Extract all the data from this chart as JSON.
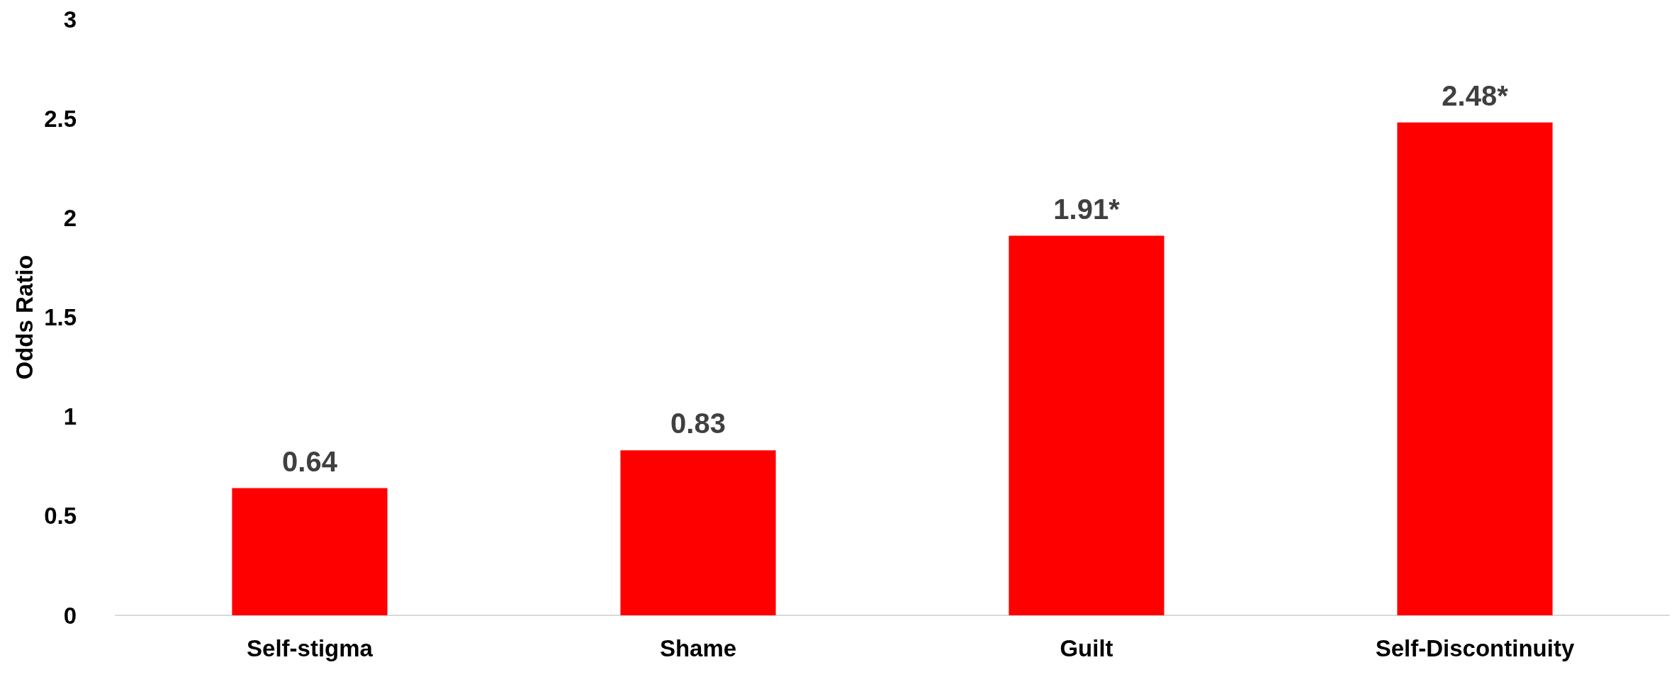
{
  "chart_data": {
    "type": "bar",
    "ylabel": "Odds Ratio",
    "categories": [
      "Self-stigma",
      "Shame",
      "Guilt",
      "Self-Discontinuity"
    ],
    "values": [
      0.64,
      0.83,
      1.91,
      2.48
    ],
    "value_labels": [
      "0.64",
      "0.83",
      "1.91*",
      "2.48*"
    ],
    "color": "#ff0000",
    "ylim": [
      0,
      3
    ],
    "yticks": [
      0,
      0.5,
      1,
      1.5,
      2,
      2.5,
      3
    ],
    "grid": false
  }
}
